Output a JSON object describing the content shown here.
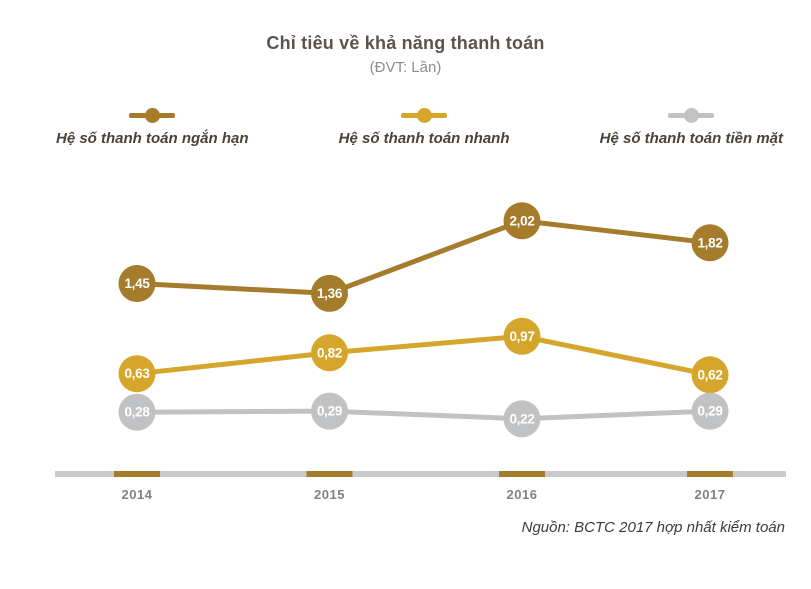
{
  "chart_data": {
    "type": "line",
    "title": "Chỉ tiêu về khả năng thanh toán",
    "subtitle": "(ĐVT: Lần)",
    "unit": "Lần",
    "categories": [
      "2014",
      "2015",
      "2016",
      "2017"
    ],
    "series": [
      {
        "name": "Hệ số thanh toán ngắn hạn",
        "color": "#A47C2C",
        "values": [
          1.45,
          1.36,
          2.02,
          1.82
        ],
        "labels": [
          "1,45",
          "1,36",
          "2,02",
          "1,82"
        ]
      },
      {
        "name": "Hệ số thanh toán nhanh",
        "color": "#D5A62B",
        "values": [
          0.63,
          0.82,
          0.97,
          0.62
        ],
        "labels": [
          "0,63",
          "0,82",
          "0,97",
          "0,62"
        ]
      },
      {
        "name": "Hệ số thanh toán tiền mặt",
        "color": "#C1C2C4",
        "values": [
          0.28,
          0.29,
          0.22,
          0.29
        ],
        "labels": [
          "0,28",
          "0,29",
          "0,22",
          "0,29"
        ]
      }
    ],
    "axis": {
      "bar_color": "#C9CACC",
      "tick_color": "#A47C2C"
    },
    "ylim": [
      0,
      2.3
    ],
    "grid": false,
    "legend_position": "top",
    "source": "Nguồn: BCTC 2017 hợp nhất kiểm toán"
  }
}
